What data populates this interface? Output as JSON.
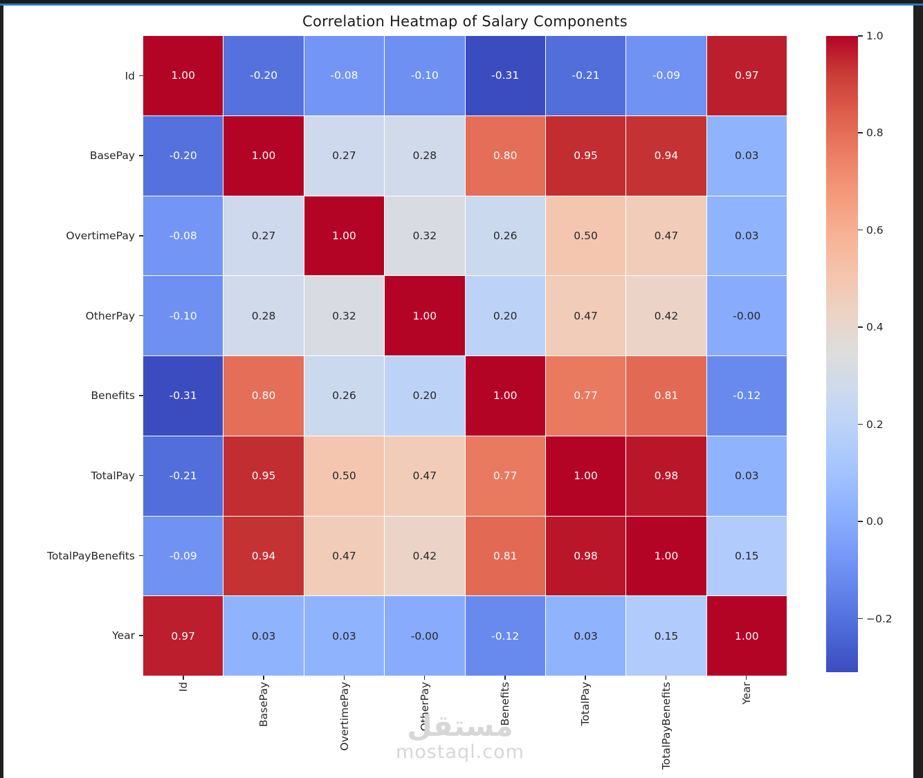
{
  "frame": {
    "top_bar_color": "#1c1c1c",
    "accent_line_color": "#2279cb",
    "side_border_color": "#202020",
    "background_color": "#ffffff"
  },
  "chart_data": {
    "type": "heatmap",
    "title": "Correlation Heatmap of Salary Components",
    "categories": [
      "Id",
      "BasePay",
      "OvertimePay",
      "OtherPay",
      "Benefits",
      "TotalPay",
      "TotalPayBenefits",
      "Year"
    ],
    "matrix": [
      [
        "1.00",
        "-0.20",
        "-0.08",
        "-0.10",
        "-0.31",
        "-0.21",
        "-0.09",
        "0.97"
      ],
      [
        "-0.20",
        "1.00",
        "0.27",
        "0.28",
        "0.80",
        "0.95",
        "0.94",
        "0.03"
      ],
      [
        "-0.08",
        "0.27",
        "1.00",
        "0.32",
        "0.26",
        "0.50",
        "0.47",
        "0.03"
      ],
      [
        "-0.10",
        "0.28",
        "0.32",
        "1.00",
        "0.20",
        "0.47",
        "0.42",
        "-0.00"
      ],
      [
        "-0.31",
        "0.80",
        "0.26",
        "0.20",
        "1.00",
        "0.77",
        "0.81",
        "-0.12"
      ],
      [
        "-0.21",
        "0.95",
        "0.50",
        "0.47",
        "0.77",
        "1.00",
        "0.98",
        "0.03"
      ],
      [
        "-0.09",
        "0.94",
        "0.47",
        "0.42",
        "0.81",
        "0.98",
        "1.00",
        "0.15"
      ],
      [
        "0.97",
        "0.03",
        "0.03",
        "-0.00",
        "-0.12",
        "0.03",
        "0.15",
        "1.00"
      ]
    ],
    "colormap": "coolwarm",
    "vmin": -0.31,
    "vmax": 1.0,
    "annotations_on": true,
    "grid_line_color": "#ffffff",
    "x_tick_rotation": 90,
    "legend_position": "right",
    "colorbar_ticks": [
      {
        "value": 1.0,
        "label": "1.0"
      },
      {
        "value": 0.8,
        "label": "0.8"
      },
      {
        "value": 0.6,
        "label": "0.6"
      },
      {
        "value": 0.4,
        "label": "0.4"
      },
      {
        "value": 0.2,
        "label": "0.2"
      },
      {
        "value": 0.0,
        "label": "0.0"
      },
      {
        "value": -0.2,
        "label": "−0.2"
      }
    ],
    "annotation_text_colors": {
      "on_light_cell": "#262626",
      "on_dark_cell": "#ffffff"
    }
  },
  "watermark": {
    "logo_text": "مستقل",
    "site_text": "mostaql.com"
  }
}
